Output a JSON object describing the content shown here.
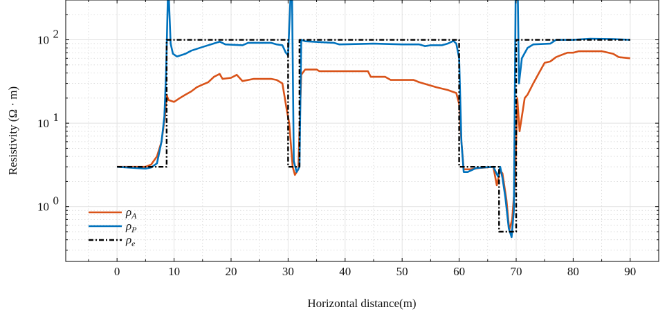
{
  "chart_data": {
    "type": "line",
    "xlabel": "Horizontal distance(m)",
    "ylabel": "Resistivity (Ω · m)",
    "xlim": [
      -9,
      95
    ],
    "ylim": [
      0.22,
      300
    ],
    "yscale": "log",
    "xticks": [
      0,
      10,
      20,
      30,
      40,
      50,
      60,
      70,
      80,
      90
    ],
    "yticks": [
      {
        "value": 1,
        "base": "10",
        "exp": "0"
      },
      {
        "value": 10,
        "base": "10",
        "exp": "1"
      },
      {
        "value": 100,
        "base": "10",
        "exp": "2"
      }
    ],
    "grid": true,
    "legend_position": "bottom-left",
    "series": [
      {
        "key": "rhoA",
        "name": "ρ",
        "sub": "A",
        "color": "#D95319",
        "style": "solid",
        "points": [
          [
            0,
            3
          ],
          [
            5,
            3
          ],
          [
            6,
            3.2
          ],
          [
            7,
            4
          ],
          [
            7.8,
            6
          ],
          [
            8.4,
            12
          ],
          [
            8.7,
            22
          ],
          [
            9,
            19
          ],
          [
            10,
            18
          ],
          [
            11,
            20
          ],
          [
            12,
            22
          ],
          [
            13,
            24
          ],
          [
            14,
            27
          ],
          [
            15,
            29
          ],
          [
            16,
            31
          ],
          [
            17,
            36
          ],
          [
            18,
            39
          ],
          [
            18.5,
            34
          ],
          [
            20,
            35
          ],
          [
            21,
            38
          ],
          [
            22,
            32
          ],
          [
            24,
            34
          ],
          [
            27,
            34
          ],
          [
            28,
            33
          ],
          [
            29,
            30
          ],
          [
            29.8,
            14
          ],
          [
            30.2,
            10
          ],
          [
            30.8,
            3
          ],
          [
            31.2,
            2.4
          ],
          [
            31.8,
            2.8
          ],
          [
            32.3,
            38
          ],
          [
            33,
            44
          ],
          [
            35,
            44
          ],
          [
            35.5,
            42
          ],
          [
            44,
            42
          ],
          [
            44.5,
            36
          ],
          [
            47,
            36
          ],
          [
            48,
            33
          ],
          [
            52,
            33
          ],
          [
            53,
            31
          ],
          [
            56,
            27
          ],
          [
            58,
            25
          ],
          [
            59.5,
            23
          ],
          [
            60,
            17
          ],
          [
            60.4,
            6
          ],
          [
            60.8,
            2.8
          ],
          [
            62,
            2.8
          ],
          [
            63.5,
            2.9
          ],
          [
            66,
            3
          ],
          [
            66.6,
            1.8
          ],
          [
            67.2,
            2.7
          ],
          [
            67.6,
            2.5
          ],
          [
            68.3,
            1.2
          ],
          [
            68.8,
            0.52
          ],
          [
            69.3,
            0.7
          ],
          [
            69.8,
            2
          ],
          [
            70.2,
            20
          ],
          [
            70.6,
            8
          ],
          [
            71,
            12
          ],
          [
            71.5,
            20
          ],
          [
            72,
            22
          ],
          [
            73,
            30
          ],
          [
            74,
            40
          ],
          [
            75,
            53
          ],
          [
            76,
            55
          ],
          [
            77,
            62
          ],
          [
            78,
            66
          ],
          [
            79,
            70
          ],
          [
            80,
            70
          ],
          [
            81,
            73
          ],
          [
            85,
            73
          ],
          [
            87,
            68
          ],
          [
            88,
            62
          ],
          [
            89,
            61
          ],
          [
            90,
            60
          ]
        ]
      },
      {
        "key": "rhoP",
        "name": "ρ",
        "sub": "P",
        "color": "#0072BD",
        "style": "solid",
        "points": [
          [
            0,
            3
          ],
          [
            5,
            2.85
          ],
          [
            6,
            2.95
          ],
          [
            7,
            3.3
          ],
          [
            7.8,
            6
          ],
          [
            8.3,
            12
          ],
          [
            8.6,
            40
          ],
          [
            8.9,
            300
          ],
          [
            9.1,
            300
          ],
          [
            9.4,
            90
          ],
          [
            9.8,
            68
          ],
          [
            10.5,
            63
          ],
          [
            12,
            68
          ],
          [
            13,
            74
          ],
          [
            15,
            82
          ],
          [
            18,
            95
          ],
          [
            19,
            88
          ],
          [
            22,
            86
          ],
          [
            23,
            92
          ],
          [
            27,
            92
          ],
          [
            28,
            88
          ],
          [
            29,
            86
          ],
          [
            29.6,
            70
          ],
          [
            30,
            65
          ],
          [
            30.4,
            300
          ],
          [
            30.7,
            300
          ],
          [
            31,
            3.5
          ],
          [
            31.5,
            2.6
          ],
          [
            32,
            3
          ],
          [
            32.3,
            100
          ],
          [
            33,
            96
          ],
          [
            38,
            92
          ],
          [
            39,
            88
          ],
          [
            45,
            90
          ],
          [
            50,
            88
          ],
          [
            53,
            88
          ],
          [
            54,
            84
          ],
          [
            55,
            86
          ],
          [
            57,
            86
          ],
          [
            58,
            90
          ],
          [
            59,
            97
          ],
          [
            59.5,
            90
          ],
          [
            60,
            60
          ],
          [
            60.4,
            6
          ],
          [
            60.8,
            2.6
          ],
          [
            61.5,
            2.6
          ],
          [
            63,
            2.9
          ],
          [
            66,
            3
          ],
          [
            66.8,
            2.3
          ],
          [
            67.2,
            3
          ],
          [
            67.6,
            2.2
          ],
          [
            68.1,
            1.3
          ],
          [
            68.7,
            0.55
          ],
          [
            69.2,
            0.43
          ],
          [
            69.6,
            0.9
          ],
          [
            69.9,
            300
          ],
          [
            70.3,
            300
          ],
          [
            70.5,
            30
          ],
          [
            71,
            60
          ],
          [
            72,
            80
          ],
          [
            73,
            88
          ],
          [
            76,
            90
          ],
          [
            77,
            100
          ],
          [
            80,
            100
          ],
          [
            83,
            103
          ],
          [
            87,
            102
          ],
          [
            90,
            100
          ]
        ]
      },
      {
        "key": "rhoE",
        "name": "ρ",
        "sub": "e",
        "color": "#000000",
        "style": "dash-dot",
        "points": [
          [
            0,
            3
          ],
          [
            8.7,
            3
          ],
          [
            8.7,
            100
          ],
          [
            30,
            100
          ],
          [
            30,
            3
          ],
          [
            32,
            3
          ],
          [
            32,
            100
          ],
          [
            60,
            100
          ],
          [
            60,
            3
          ],
          [
            67,
            3
          ],
          [
            67,
            0.5
          ],
          [
            70,
            0.5
          ],
          [
            70,
            100
          ],
          [
            90,
            100
          ]
        ]
      }
    ]
  }
}
